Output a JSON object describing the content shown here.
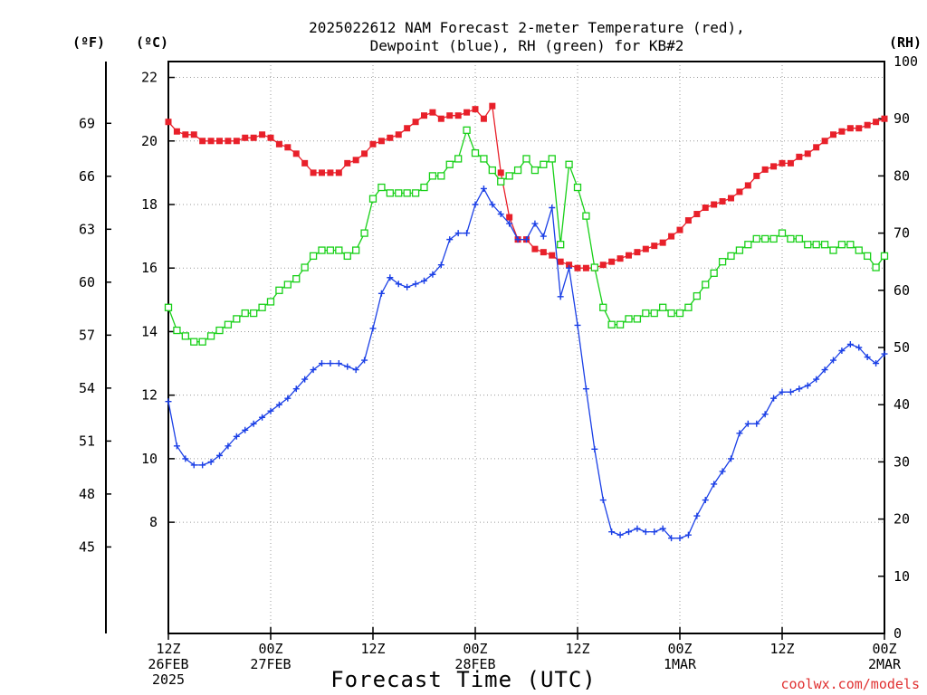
{
  "chart_data": {
    "type": "line",
    "title": [
      "2025022612 NAM Forecast 2-meter Temperature (red),",
      "Dewpoint (blue), RH (green) for KB#2"
    ],
    "xlabel": "Forecast Time (UTC)",
    "left_unit_f": "(ºF)",
    "left_unit_c": "(ºC)",
    "right_unit": "(RH)",
    "credit": "coolwx.com/models",
    "ylim_c": [
      4.5,
      22.5
    ],
    "ylim_rh": [
      0,
      100
    ],
    "x_range_hours": [
      0,
      84
    ],
    "grid": true,
    "x_ticks": [
      {
        "hour": 0,
        "lines": [
          "12Z",
          "26FEB",
          "2025"
        ]
      },
      {
        "hour": 12,
        "lines": [
          "00Z",
          "27FEB"
        ]
      },
      {
        "hour": 24,
        "lines": [
          "12Z"
        ]
      },
      {
        "hour": 36,
        "lines": [
          "00Z",
          "28FEB"
        ]
      },
      {
        "hour": 48,
        "lines": [
          "12Z"
        ]
      },
      {
        "hour": 60,
        "lines": [
          "00Z",
          "1MAR"
        ]
      },
      {
        "hour": 72,
        "lines": [
          "12Z"
        ]
      },
      {
        "hour": 84,
        "lines": [
          "00Z",
          "2MAR"
        ]
      }
    ],
    "y_ticks_c": [
      "8",
      "10",
      "12",
      "14",
      "16",
      "18",
      "20",
      "22"
    ],
    "y_ticks_f": [
      "45",
      "48",
      "51",
      "54",
      "57",
      "60",
      "63",
      "66",
      "69"
    ],
    "y_ticks_rh": [
      "0",
      "10",
      "20",
      "30",
      "40",
      "50",
      "60",
      "70",
      "80",
      "90",
      "100"
    ],
    "series": [
      {
        "name": "Temperature",
        "color": "#e8202a",
        "marker": "filled-square",
        "unit": "C",
        "x": [
          0,
          1,
          2,
          3,
          4,
          5,
          6,
          7,
          8,
          9,
          10,
          11,
          12,
          13,
          14,
          15,
          16,
          17,
          18,
          19,
          20,
          21,
          22,
          23,
          24,
          25,
          26,
          27,
          28,
          29,
          30,
          31,
          32,
          33,
          34,
          35,
          36,
          37,
          38,
          39,
          40,
          41,
          42,
          43,
          44,
          45,
          46,
          47,
          48,
          49,
          50,
          51,
          52,
          53,
          54,
          55,
          56,
          57,
          58,
          59,
          60,
          61,
          62,
          63,
          64,
          65,
          66,
          67,
          68,
          69,
          70,
          71,
          72,
          73,
          74,
          75,
          76,
          77,
          78,
          79,
          80,
          81,
          82,
          83,
          84
        ],
        "y": [
          20.6,
          20.3,
          20.2,
          20.2,
          20.0,
          20.0,
          20.0,
          20.0,
          20.0,
          20.1,
          20.1,
          20.2,
          20.1,
          19.9,
          19.8,
          19.6,
          19.3,
          19.0,
          19.0,
          19.0,
          19.0,
          19.3,
          19.4,
          19.6,
          19.9,
          20.0,
          20.1,
          20.2,
          20.4,
          20.6,
          20.8,
          20.9,
          20.7,
          20.8,
          20.8,
          20.9,
          21.0,
          20.7,
          21.1,
          19.0,
          17.6,
          16.9,
          16.9,
          16.6,
          16.5,
          16.4,
          16.2,
          16.1,
          16.0,
          16.0,
          16.0,
          16.1,
          16.2,
          16.3,
          16.4,
          16.5,
          16.6,
          16.7,
          16.8,
          17.0,
          17.2,
          17.5,
          17.7,
          17.9,
          18.0,
          18.1,
          18.2,
          18.4,
          18.6,
          18.9,
          19.1,
          19.2,
          19.3,
          19.3,
          19.5,
          19.6,
          19.8,
          20.0,
          20.2,
          20.3,
          20.4,
          20.4,
          20.5,
          20.6,
          20.7
        ]
      },
      {
        "name": "Dewpoint",
        "color": "#1a3fe6",
        "marker": "plus",
        "unit": "C",
        "x": [
          0,
          1,
          2,
          3,
          4,
          5,
          6,
          7,
          8,
          9,
          10,
          11,
          12,
          13,
          14,
          15,
          16,
          17,
          18,
          19,
          20,
          21,
          22,
          23,
          24,
          25,
          26,
          27,
          28,
          29,
          30,
          31,
          32,
          33,
          34,
          35,
          36,
          37,
          38,
          39,
          40,
          41,
          42,
          43,
          44,
          45,
          46,
          47,
          48,
          49,
          50,
          51,
          52,
          53,
          54,
          55,
          56,
          57,
          58,
          59,
          60,
          61,
          62,
          63,
          64,
          65,
          66,
          67,
          68,
          69,
          70,
          71,
          72,
          73,
          74,
          75,
          76,
          77,
          78,
          79,
          80,
          81,
          82,
          83,
          84
        ],
        "y": [
          11.8,
          10.4,
          10.0,
          9.8,
          9.8,
          9.9,
          10.1,
          10.4,
          10.7,
          10.9,
          11.1,
          11.3,
          11.5,
          11.7,
          11.9,
          12.2,
          12.5,
          12.8,
          13.0,
          13.0,
          13.0,
          12.9,
          12.8,
          13.1,
          14.1,
          15.2,
          15.7,
          15.5,
          15.4,
          15.5,
          15.6,
          15.8,
          16.1,
          16.9,
          17.1,
          17.1,
          18.0,
          18.5,
          18.0,
          17.7,
          17.4,
          16.9,
          16.9,
          17.4,
          17.0,
          17.9,
          15.1,
          16.0,
          14.2,
          12.2,
          10.3,
          8.7,
          7.7,
          7.6,
          7.7,
          7.8,
          7.7,
          7.7,
          7.8,
          7.5,
          7.5,
          7.6,
          8.2,
          8.7,
          9.2,
          9.6,
          10.0,
          10.8,
          11.1,
          11.1,
          11.4,
          11.9,
          12.1,
          12.1,
          12.2,
          12.3,
          12.5,
          12.8,
          13.1,
          13.4,
          13.6,
          13.5,
          13.2,
          13.0,
          13.3
        ]
      },
      {
        "name": "RH",
        "color": "#18d018",
        "marker": "open-square",
        "unit": "RH",
        "x": [
          0,
          1,
          2,
          3,
          4,
          5,
          6,
          7,
          8,
          9,
          10,
          11,
          12,
          13,
          14,
          15,
          16,
          17,
          18,
          19,
          20,
          21,
          22,
          23,
          24,
          25,
          26,
          27,
          28,
          29,
          30,
          31,
          32,
          33,
          34,
          35,
          36,
          37,
          38,
          39,
          40,
          41,
          42,
          43,
          44,
          45,
          46,
          47,
          48,
          49,
          50,
          51,
          52,
          53,
          54,
          55,
          56,
          57,
          58,
          59,
          60,
          61,
          62,
          63,
          64,
          65,
          66,
          67,
          68,
          69,
          70,
          71,
          72,
          73,
          74,
          75,
          76,
          77,
          78,
          79,
          80,
          81,
          82,
          83,
          84
        ],
        "y": [
          57,
          53,
          52,
          51,
          51,
          52,
          53,
          54,
          55,
          56,
          56,
          57,
          58,
          60,
          61,
          62,
          64,
          66,
          67,
          67,
          67,
          66,
          67,
          70,
          76,
          78,
          77,
          77,
          77,
          77,
          78,
          80,
          80,
          82,
          83,
          88,
          84,
          83,
          81,
          79,
          80,
          81,
          83,
          81,
          82,
          83,
          68,
          82,
          78,
          73,
          64,
          57,
          54,
          54,
          55,
          55,
          56,
          56,
          57,
          56,
          56,
          57,
          59,
          61,
          63,
          65,
          66,
          67,
          68,
          69,
          69,
          69,
          70,
          69,
          69,
          68,
          68,
          68,
          67,
          68,
          68,
          67,
          66,
          64,
          66
        ]
      }
    ]
  }
}
